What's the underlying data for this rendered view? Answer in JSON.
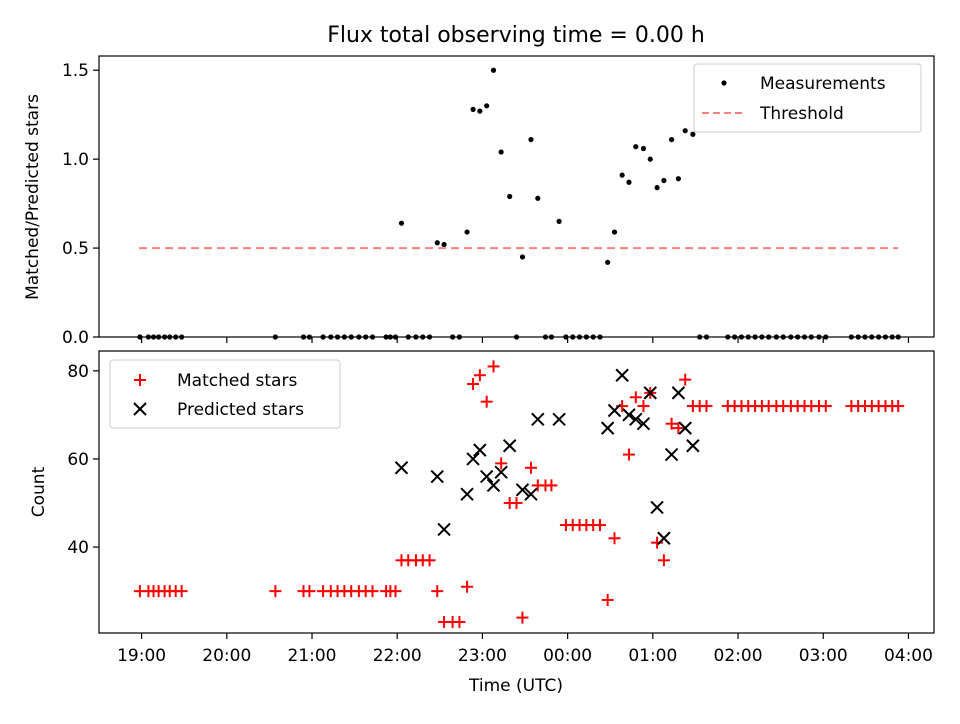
{
  "figure": {
    "title": "Flux total observing time = 0.00 h"
  },
  "chart_data": [
    {
      "type": "scatter",
      "panel": "top",
      "title": "Flux total observing time = 0.00 h",
      "xlabel": "",
      "ylabel": "Matched/Predicted stars",
      "xlim": [
        18.5,
        28.3
      ],
      "ylim": [
        0,
        1.58
      ],
      "yticks": [
        0.0,
        0.5,
        1.0,
        1.5
      ],
      "ytick_labels": [
        "0.0",
        "0.5",
        "1.0",
        "1.5"
      ],
      "xticks": [
        19,
        20,
        21,
        22,
        23,
        24,
        25,
        26,
        27,
        28
      ],
      "legend_position": "top-right",
      "series": [
        {
          "name": "Measurements",
          "marker": "dot",
          "color": "#000000",
          "points": [
            [
              18.98,
              0.0
            ],
            [
              19.08,
              0.0
            ],
            [
              19.14,
              0.0
            ],
            [
              19.2,
              0.0
            ],
            [
              19.27,
              0.0
            ],
            [
              19.33,
              0.0
            ],
            [
              19.4,
              0.0
            ],
            [
              19.47,
              0.0
            ],
            [
              20.57,
              0.0
            ],
            [
              20.9,
              0.0
            ],
            [
              20.97,
              0.0
            ],
            [
              21.13,
              0.0
            ],
            [
              21.22,
              0.0
            ],
            [
              21.3,
              0.0
            ],
            [
              21.38,
              0.0
            ],
            [
              21.46,
              0.0
            ],
            [
              21.55,
              0.0
            ],
            [
              21.63,
              0.0
            ],
            [
              21.71,
              0.0
            ],
            [
              21.87,
              0.0
            ],
            [
              21.92,
              0.0
            ],
            [
              21.98,
              0.0
            ],
            [
              22.05,
              0.64
            ],
            [
              22.13,
              0.0
            ],
            [
              22.22,
              0.0
            ],
            [
              22.3,
              0.0
            ],
            [
              22.38,
              0.0
            ],
            [
              22.47,
              0.53
            ],
            [
              22.55,
              0.52
            ],
            [
              22.65,
              0.0
            ],
            [
              22.73,
              0.0
            ],
            [
              22.82,
              0.59
            ],
            [
              22.89,
              1.28
            ],
            [
              22.97,
              1.27
            ],
            [
              23.05,
              1.3
            ],
            [
              23.13,
              1.5
            ],
            [
              23.22,
              1.04
            ],
            [
              23.32,
              0.79
            ],
            [
              23.4,
              0.0
            ],
            [
              23.47,
              0.45
            ],
            [
              23.57,
              1.11
            ],
            [
              23.65,
              0.78
            ],
            [
              23.74,
              0.0
            ],
            [
              23.81,
              0.0
            ],
            [
              23.9,
              0.65
            ],
            [
              23.98,
              0.0
            ],
            [
              24.06,
              0.0
            ],
            [
              24.14,
              0.0
            ],
            [
              24.22,
              0.0
            ],
            [
              24.3,
              0.0
            ],
            [
              24.38,
              0.0
            ],
            [
              24.47,
              0.42
            ],
            [
              24.55,
              0.59
            ],
            [
              24.64,
              0.91
            ],
            [
              24.72,
              0.87
            ],
            [
              24.8,
              1.07
            ],
            [
              24.89,
              1.06
            ],
            [
              24.97,
              1.0
            ],
            [
              25.05,
              0.84
            ],
            [
              25.13,
              0.88
            ],
            [
              25.22,
              1.11
            ],
            [
              25.3,
              0.89
            ],
            [
              25.38,
              1.16
            ],
            [
              25.47,
              1.14
            ],
            [
              25.55,
              0.0
            ],
            [
              25.63,
              0.0
            ],
            [
              25.88,
              0.0
            ],
            [
              25.96,
              0.0
            ],
            [
              26.04,
              0.0
            ],
            [
              26.12,
              0.0
            ],
            [
              26.2,
              0.0
            ],
            [
              26.28,
              0.0
            ],
            [
              26.36,
              0.0
            ],
            [
              26.45,
              0.0
            ],
            [
              26.53,
              0.0
            ],
            [
              26.62,
              0.0
            ],
            [
              26.7,
              0.0
            ],
            [
              26.78,
              0.0
            ],
            [
              26.86,
              0.0
            ],
            [
              26.95,
              0.0
            ],
            [
              27.03,
              0.0
            ],
            [
              27.33,
              0.0
            ],
            [
              27.41,
              0.0
            ],
            [
              27.49,
              0.0
            ],
            [
              27.57,
              0.0
            ],
            [
              27.65,
              0.0
            ],
            [
              27.73,
              0.0
            ],
            [
              27.81,
              0.0
            ],
            [
              27.88,
              0.0
            ]
          ]
        },
        {
          "name": "Threshold",
          "style": "dashed-line",
          "color": "#ff7f7f",
          "points": [
            [
              18.97,
              0.5
            ],
            [
              27.88,
              0.5
            ]
          ]
        }
      ]
    },
    {
      "type": "scatter",
      "panel": "bottom",
      "xlabel": "Time (UTC)",
      "ylabel": "Count",
      "xlim": [
        18.5,
        28.3
      ],
      "ylim": [
        20.5,
        84.5
      ],
      "yticks": [
        40,
        60,
        80
      ],
      "ytick_labels": [
        "40",
        "60",
        "80"
      ],
      "xticks": [
        19,
        20,
        21,
        22,
        23,
        24,
        25,
        26,
        27,
        28
      ],
      "xtick_labels": [
        "19:00",
        "20:00",
        "21:00",
        "22:00",
        "23:00",
        "00:00",
        "01:00",
        "02:00",
        "03:00",
        "04:00"
      ],
      "legend_position": "top-left",
      "series": [
        {
          "name": "Matched stars",
          "marker": "plus",
          "color": "#ff0000",
          "points": [
            [
              18.98,
              30
            ],
            [
              19.08,
              30
            ],
            [
              19.14,
              30
            ],
            [
              19.2,
              30
            ],
            [
              19.27,
              30
            ],
            [
              19.33,
              30
            ],
            [
              19.4,
              30
            ],
            [
              19.47,
              30
            ],
            [
              20.57,
              30
            ],
            [
              20.9,
              30
            ],
            [
              20.97,
              30
            ],
            [
              21.13,
              30
            ],
            [
              21.22,
              30
            ],
            [
              21.3,
              30
            ],
            [
              21.38,
              30
            ],
            [
              21.46,
              30
            ],
            [
              21.55,
              30
            ],
            [
              21.63,
              30
            ],
            [
              21.71,
              30
            ],
            [
              21.87,
              30
            ],
            [
              21.92,
              30
            ],
            [
              21.98,
              30
            ],
            [
              22.05,
              37
            ],
            [
              22.13,
              37
            ],
            [
              22.22,
              37
            ],
            [
              22.3,
              37
            ],
            [
              22.38,
              37
            ],
            [
              22.47,
              30
            ],
            [
              22.55,
              23
            ],
            [
              22.65,
              23
            ],
            [
              22.73,
              23
            ],
            [
              22.82,
              31
            ],
            [
              22.89,
              77
            ],
            [
              22.97,
              79
            ],
            [
              23.05,
              73
            ],
            [
              23.13,
              81
            ],
            [
              23.22,
              59
            ],
            [
              23.32,
              50
            ],
            [
              23.4,
              50
            ],
            [
              23.47,
              24
            ],
            [
              23.57,
              58
            ],
            [
              23.65,
              54
            ],
            [
              23.74,
              54
            ],
            [
              23.81,
              54
            ],
            [
              23.98,
              45
            ],
            [
              24.06,
              45
            ],
            [
              24.14,
              45
            ],
            [
              24.22,
              45
            ],
            [
              24.3,
              45
            ],
            [
              24.38,
              45
            ],
            [
              24.47,
              28
            ],
            [
              24.55,
              42
            ],
            [
              24.64,
              72
            ],
            [
              24.72,
              61
            ],
            [
              24.8,
              74
            ],
            [
              24.89,
              72
            ],
            [
              24.97,
              75
            ],
            [
              25.05,
              41
            ],
            [
              25.13,
              37
            ],
            [
              25.22,
              68
            ],
            [
              25.3,
              67
            ],
            [
              25.38,
              78
            ],
            [
              25.47,
              72
            ],
            [
              25.55,
              72
            ],
            [
              25.63,
              72
            ],
            [
              25.88,
              72
            ],
            [
              25.96,
              72
            ],
            [
              26.04,
              72
            ],
            [
              26.12,
              72
            ],
            [
              26.2,
              72
            ],
            [
              26.28,
              72
            ],
            [
              26.36,
              72
            ],
            [
              26.45,
              72
            ],
            [
              26.53,
              72
            ],
            [
              26.62,
              72
            ],
            [
              26.7,
              72
            ],
            [
              26.78,
              72
            ],
            [
              26.86,
              72
            ],
            [
              26.95,
              72
            ],
            [
              27.03,
              72
            ],
            [
              27.33,
              72
            ],
            [
              27.41,
              72
            ],
            [
              27.49,
              72
            ],
            [
              27.57,
              72
            ],
            [
              27.65,
              72
            ],
            [
              27.73,
              72
            ],
            [
              27.81,
              72
            ],
            [
              27.88,
              72
            ]
          ]
        },
        {
          "name": "Predicted stars",
          "marker": "x",
          "color": "#000000",
          "points": [
            [
              22.05,
              58
            ],
            [
              22.47,
              56
            ],
            [
              22.55,
              44
            ],
            [
              22.82,
              52
            ],
            [
              22.89,
              60
            ],
            [
              22.97,
              62
            ],
            [
              23.05,
              56
            ],
            [
              23.13,
              54
            ],
            [
              23.22,
              57
            ],
            [
              23.32,
              63
            ],
            [
              23.47,
              53
            ],
            [
              23.57,
              52
            ],
            [
              23.65,
              69
            ],
            [
              23.9,
              69
            ],
            [
              24.47,
              67
            ],
            [
              24.55,
              71
            ],
            [
              24.64,
              79
            ],
            [
              24.72,
              70
            ],
            [
              24.8,
              69
            ],
            [
              24.89,
              68
            ],
            [
              24.97,
              75
            ],
            [
              25.05,
              49
            ],
            [
              25.13,
              42
            ],
            [
              25.22,
              61
            ],
            [
              25.3,
              75
            ],
            [
              25.38,
              67
            ],
            [
              25.47,
              63
            ]
          ]
        }
      ]
    }
  ]
}
